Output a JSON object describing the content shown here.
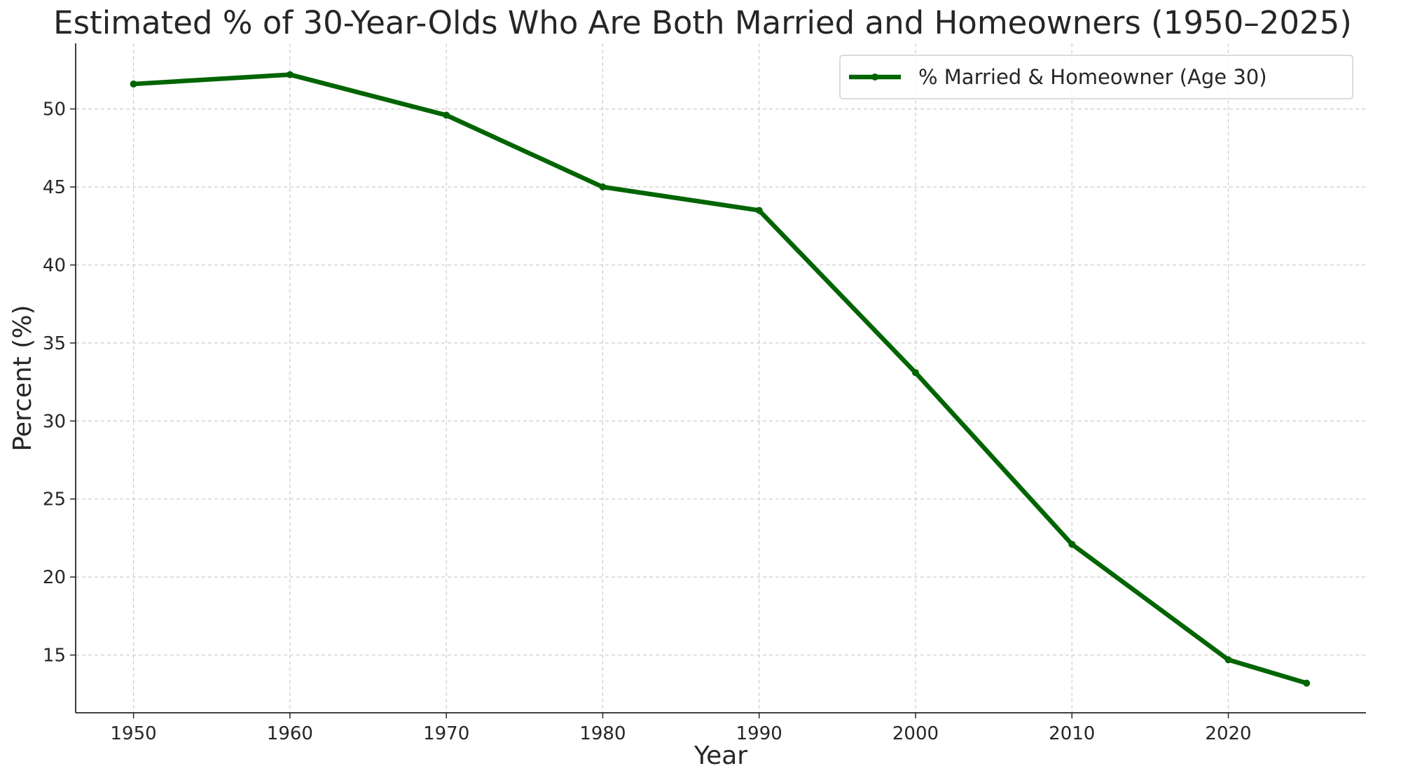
{
  "chart_data": {
    "type": "line",
    "title": "Estimated % of 30-Year-Olds Who Are Both Married and Homeowners (1950–2025)",
    "xlabel": "Year",
    "ylabel": "Percent (%)",
    "xlim": [
      1946.3,
      2028.8
    ],
    "ylim": [
      11.3,
      54.2
    ],
    "xticks": [
      1950,
      1960,
      1970,
      1980,
      1990,
      2000,
      2010,
      2020
    ],
    "yticks": [
      15,
      20,
      25,
      30,
      35,
      40,
      45,
      50
    ],
    "grid": true,
    "legend_position": "top-right",
    "series": [
      {
        "name": "% Married & Homeowner (Age 30)",
        "color": "#006400",
        "marker": "circle",
        "x": [
          1950,
          1960,
          1970,
          1980,
          1990,
          2000,
          2010,
          2020,
          2025
        ],
        "y": [
          51.6,
          52.2,
          49.6,
          45.0,
          43.5,
          33.1,
          22.1,
          14.7,
          13.2
        ]
      }
    ]
  }
}
